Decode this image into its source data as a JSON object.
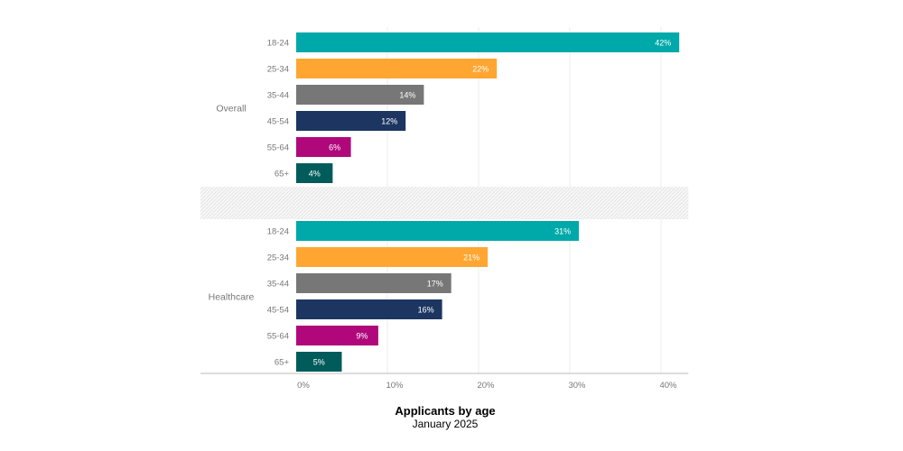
{
  "chart_data": {
    "type": "bar",
    "orientation": "horizontal",
    "title": "Applicants by age",
    "subtitle": "January 2025",
    "xlabel": "",
    "ylabel": "",
    "xlim": [
      0,
      43
    ],
    "x_ticks": [
      0,
      10,
      20,
      30,
      40
    ],
    "x_tick_labels": [
      "0%",
      "10%",
      "20%",
      "30%",
      "40%"
    ],
    "grid": true,
    "categories": [
      "18-24",
      "25-34",
      "35-44",
      "45-54",
      "55-64",
      "65+"
    ],
    "colors": [
      "#00a9a9",
      "#ffa632",
      "#777777",
      "#1c3661",
      "#b0087b",
      "#005b5b"
    ],
    "groups": [
      {
        "name": "Overall",
        "values": [
          42,
          22,
          14,
          12,
          6,
          4
        ],
        "labels": [
          "42%",
          "22%",
          "14%",
          "12%",
          "6%",
          "4%"
        ]
      },
      {
        "name": "Healthcare",
        "values": [
          31,
          21,
          17,
          16,
          9,
          5
        ],
        "labels": [
          "31%",
          "21%",
          "17%",
          "16%",
          "9%",
          "5%"
        ]
      }
    ]
  }
}
